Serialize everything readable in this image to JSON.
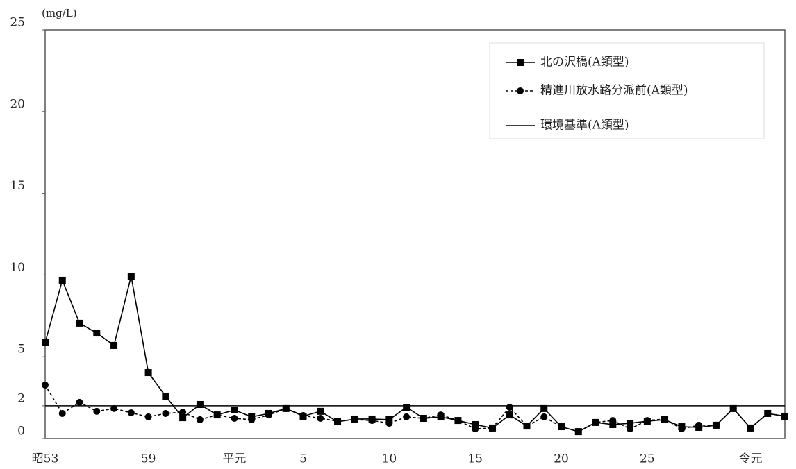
{
  "chart_data": {
    "type": "line",
    "y_axis_label": "(mg/L)",
    "categories": [
      "昭53",
      null,
      null,
      null,
      null,
      null,
      "59",
      null,
      null,
      null,
      null,
      "平元",
      null,
      null,
      null,
      "5",
      null,
      null,
      null,
      null,
      "10",
      null,
      null,
      null,
      null,
      "15",
      null,
      null,
      null,
      null,
      "20",
      null,
      null,
      null,
      null,
      "25",
      null,
      null,
      null,
      null,
      null,
      "令元",
      null,
      null
    ],
    "series": [
      {
        "name": "北の沢橋(A類型)",
        "color": "#000000",
        "dash": false,
        "marker": "square",
        "values": [
          5.86,
          9.68,
          7.05,
          6.45,
          5.69,
          9.93,
          4.03,
          2.59,
          1.27,
          2.08,
          1.44,
          1.74,
          1.32,
          1.53,
          1.83,
          1.36,
          1.66,
          1.02,
          1.19,
          1.19,
          1.15,
          1.91,
          1.23,
          1.32,
          1.1,
          0.85,
          0.64,
          1.44,
          0.76,
          1.83,
          0.72,
          0.42,
          0.98,
          0.85,
          0.93,
          1.06,
          1.15,
          0.72,
          0.68,
          0.81,
          1.83,
          0.64,
          1.53,
          1.36
        ]
      },
      {
        "name": "精進川放水路分派前(A類型)",
        "color": "#000000",
        "dash": true,
        "marker": "circle",
        "values": [
          3.27,
          1.53,
          2.21,
          1.66,
          1.83,
          1.57,
          1.32,
          1.53,
          1.61,
          1.15,
          1.44,
          1.23,
          1.15,
          1.44,
          1.83,
          1.4,
          1.23,
          1.06,
          1.15,
          1.1,
          0.93,
          1.32,
          1.23,
          1.44,
          1.1,
          0.59,
          0.64,
          1.91,
          0.76,
          1.32,
          0.72,
          0.42,
          0.98,
          1.1,
          0.59,
          1.1,
          1.19,
          0.59,
          0.81,
          0.81,
          1.83,
          0.64,
          1.53,
          1.36
        ]
      }
    ],
    "standard": {
      "name": "環境基準(A類型)",
      "value": 2,
      "color": "#000000"
    },
    "ylim": [
      0,
      25
    ],
    "yticks": [
      0,
      2,
      5,
      10,
      15,
      20,
      25
    ],
    "legend": "upper right"
  }
}
